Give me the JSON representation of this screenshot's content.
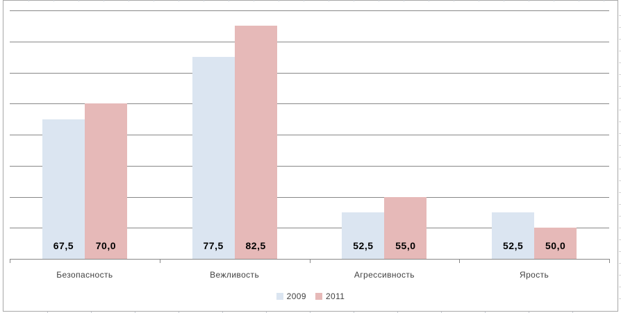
{
  "chart_data": {
    "type": "bar",
    "title": "",
    "xlabel": "",
    "ylabel": "",
    "categories": [
      "Безопасность",
      "Вежливость",
      "Агрессивность",
      "Ярость"
    ],
    "series": [
      {
        "name": "2009",
        "color": "#dbe5f1",
        "values": [
          67.5,
          77.5,
          52.5,
          52.5
        ]
      },
      {
        "name": "2011",
        "color": "#e6b9b8",
        "values": [
          70.0,
          82.5,
          55.0,
          50.0
        ]
      }
    ],
    "data_labels": [
      [
        "67,5",
        "77,5",
        "52,5",
        "52,5"
      ],
      [
        "70,0",
        "82,5",
        "55,0",
        "50,0"
      ]
    ],
    "ylim": [
      45,
      85
    ],
    "grid_step": 5,
    "grid": true,
    "value_axis_labels_visible": false,
    "legend_position": "bottom"
  },
  "legend": {
    "items": [
      {
        "label": "2009",
        "color": "#dbe5f1"
      },
      {
        "label": "2011",
        "color": "#e6b9b8"
      }
    ]
  },
  "colors": {
    "gridline": "#878787",
    "axis": "#878787",
    "chart_border": "#a6a6a6",
    "category_label": "#3f3f3f",
    "data_label": "#000000",
    "background": "#ffffff"
  }
}
